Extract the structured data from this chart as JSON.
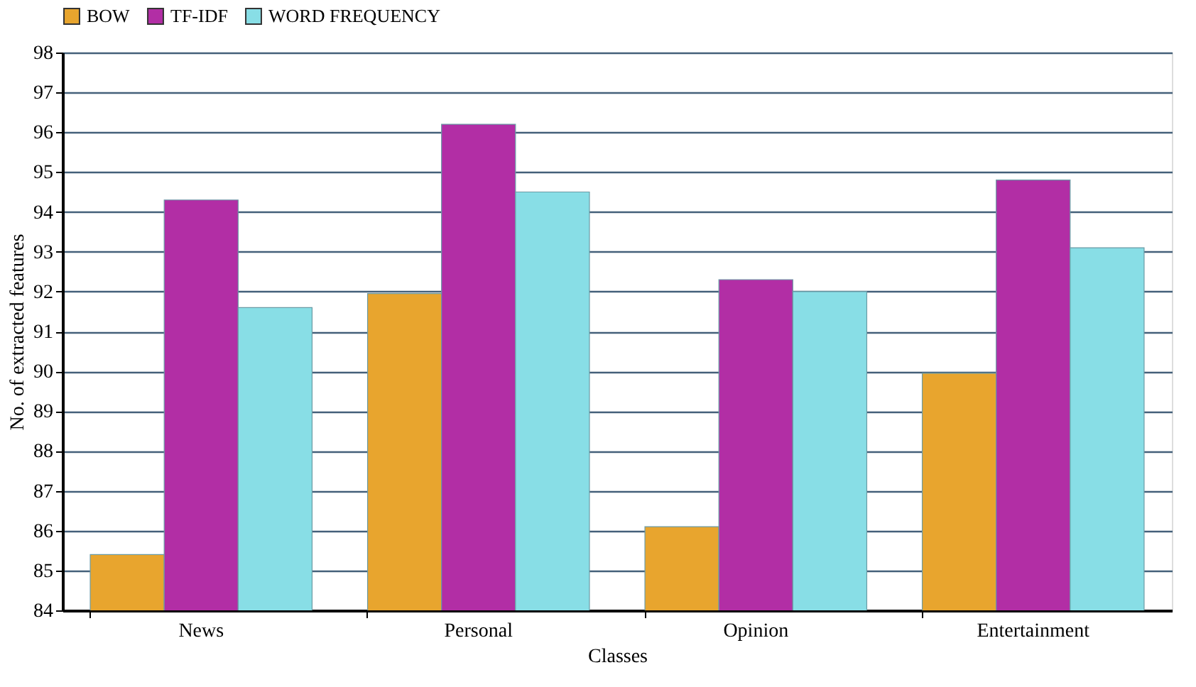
{
  "chart_data": {
    "type": "bar",
    "xlabel": "Classes",
    "ylabel": "No. of extracted features",
    "categories": [
      "News",
      "Personal",
      "Opinion",
      "Entertainment"
    ],
    "series": [
      {
        "name": "BOW",
        "color": "#e8a52e",
        "values": [
          85.4,
          91.95,
          86.1,
          89.95
        ]
      },
      {
        "name": "TF-IDF",
        "color": "#b22ea5",
        "values": [
          94.3,
          96.2,
          92.3,
          94.8
        ]
      },
      {
        "name": "WORD FREQUENCY",
        "color": "#88dee6",
        "values": [
          91.6,
          94.5,
          92.0,
          93.1
        ]
      }
    ],
    "ylim": [
      84,
      98
    ],
    "yticks": [
      84,
      85,
      86,
      87,
      88,
      89,
      90,
      91,
      92,
      93,
      94,
      95,
      96,
      97,
      98
    ],
    "grid": "y",
    "legend": "top left"
  }
}
